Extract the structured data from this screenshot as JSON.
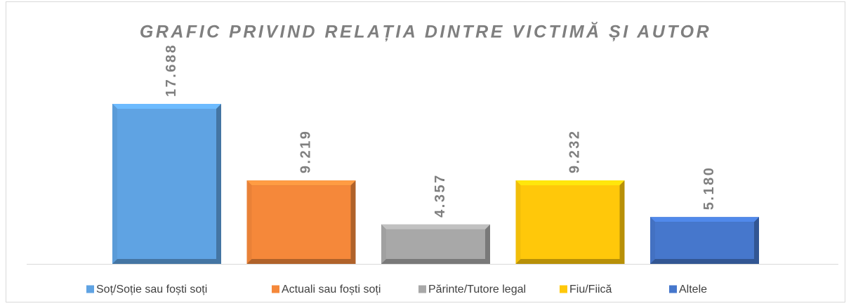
{
  "chart_data": {
    "type": "bar",
    "title": "GRAFIC PRIVIND RELAȚIA DINTRE VICTIMĂ ȘI AUTOR",
    "categories": [
      "Soț/Soție sau foști soți",
      "Actuali sau foști soți",
      "Părinte/Tutore legal",
      "Fiu/Fiică",
      "Altele"
    ],
    "values": [
      17688,
      9219,
      4357,
      9232,
      5180
    ],
    "value_labels": [
      "17.688",
      "9.219",
      "4.357",
      "9.232",
      "5.180"
    ],
    "colors": [
      "#5fa3e3",
      "#f5883a",
      "#a8a8a8",
      "#ffc80a",
      "#4677cc"
    ],
    "legend": "bottom"
  }
}
